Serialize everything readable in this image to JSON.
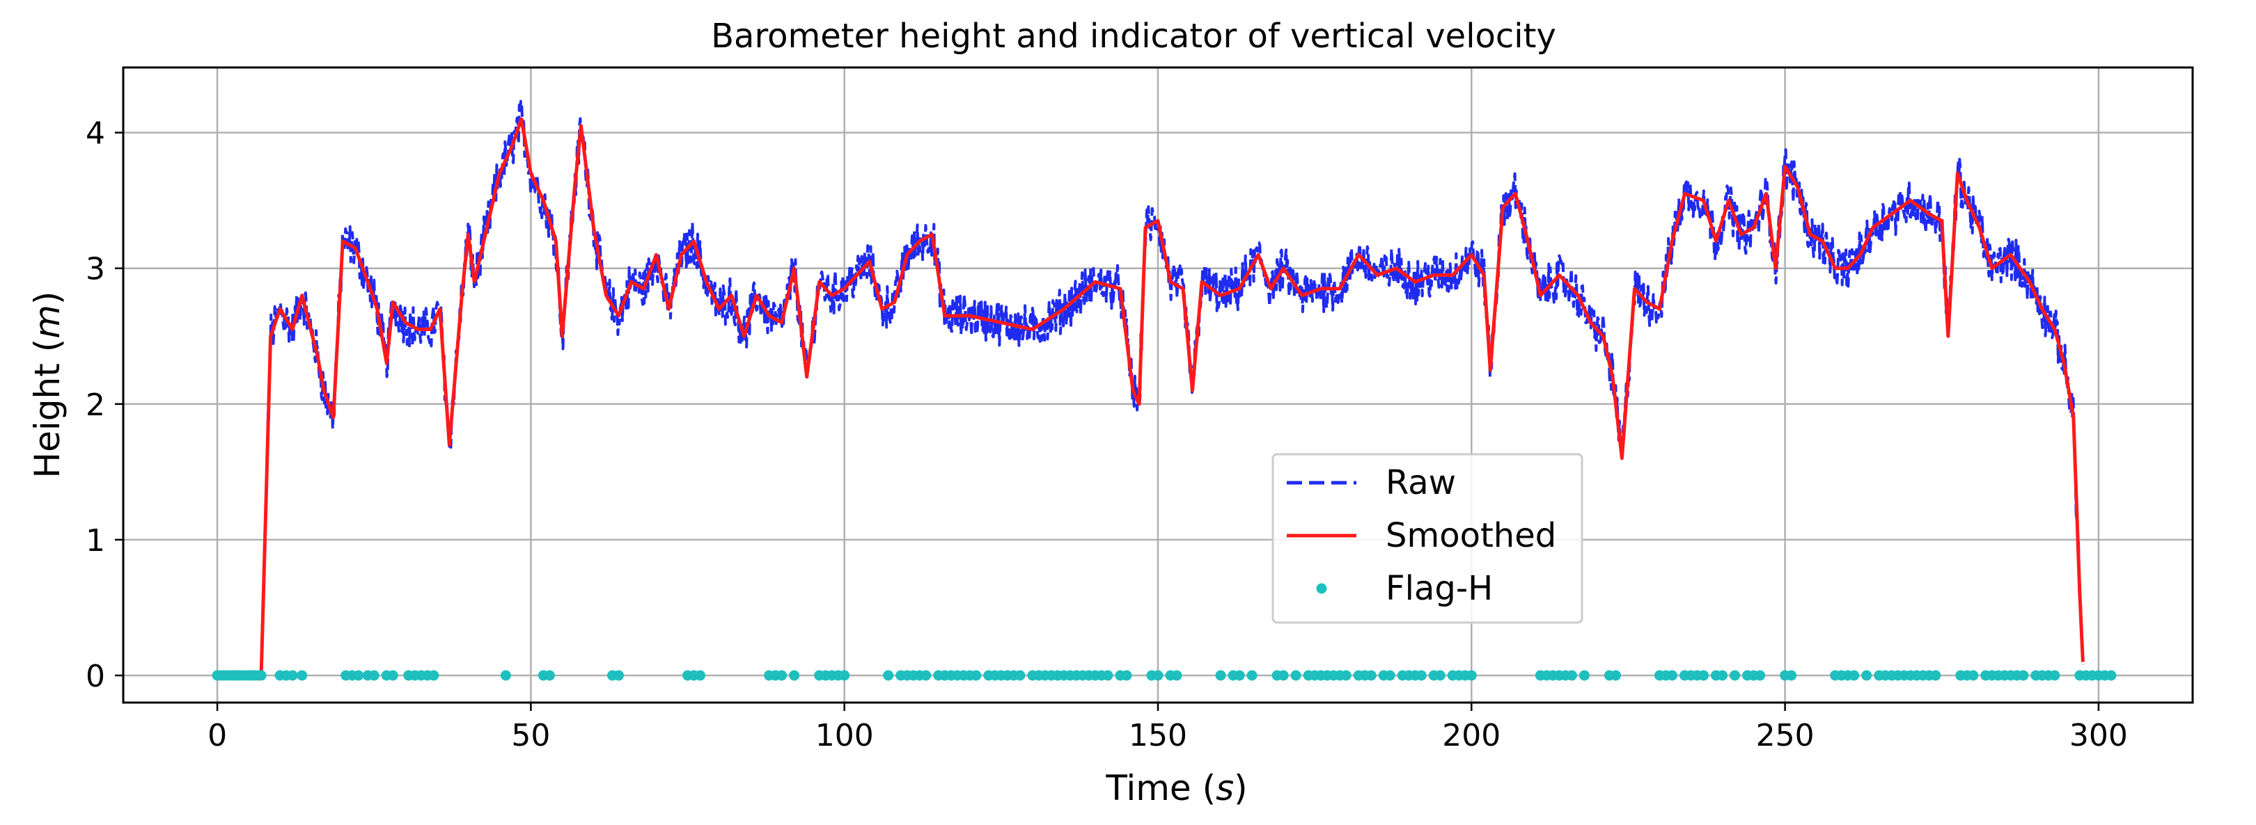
{
  "chart_data": {
    "type": "line",
    "title": "Barometer height and indicator of vertical velocity",
    "xlabel": "Time (s)",
    "xlabel_prefix": "Time (",
    "xlabel_unit": "s",
    "xlabel_suffix": ")",
    "ylabel": "Height (m)",
    "ylabel_prefix": "Height (",
    "ylabel_unit": "m",
    "ylabel_suffix": ")",
    "xlim": [
      -15,
      315
    ],
    "ylim": [
      -0.2,
      4.48
    ],
    "xticks": [
      0,
      50,
      100,
      150,
      200,
      250,
      300
    ],
    "yticks": [
      0,
      1,
      2,
      3,
      4
    ],
    "grid": true,
    "legend_position": "center-bottom",
    "colors": {
      "raw": "#1f2cf0",
      "smoothed": "#ff1a1a",
      "flag": "#1fbfbf"
    },
    "smoothed_anchors": [
      [
        0,
        0
      ],
      [
        7,
        0
      ],
      [
        8.5,
        2.5
      ],
      [
        10,
        2.7
      ],
      [
        12,
        2.55
      ],
      [
        13.5,
        2.8
      ],
      [
        16,
        2.35
      ],
      [
        17,
        2.1
      ],
      [
        18.5,
        1.9
      ],
      [
        20,
        3.2
      ],
      [
        22,
        3.15
      ],
      [
        24,
        2.9
      ],
      [
        25.5,
        2.7
      ],
      [
        27,
        2.3
      ],
      [
        28,
        2.75
      ],
      [
        30,
        2.6
      ],
      [
        32,
        2.55
      ],
      [
        34,
        2.55
      ],
      [
        35.5,
        2.7
      ],
      [
        37,
        1.7
      ],
      [
        39,
        2.8
      ],
      [
        40,
        3.25
      ],
      [
        41,
        2.9
      ],
      [
        43,
        3.3
      ],
      [
        45,
        3.7
      ],
      [
        47,
        3.9
      ],
      [
        48.5,
        4.1
      ],
      [
        50,
        3.7
      ],
      [
        52,
        3.5
      ],
      [
        54,
        3.2
      ],
      [
        55,
        2.5
      ],
      [
        57,
        3.6
      ],
      [
        58,
        4.05
      ],
      [
        60,
        3.3
      ],
      [
        62,
        2.8
      ],
      [
        64,
        2.65
      ],
      [
        66,
        2.9
      ],
      [
        68,
        2.85
      ],
      [
        70,
        3.1
      ],
      [
        72,
        2.7
      ],
      [
        74,
        3.1
      ],
      [
        76,
        3.2
      ],
      [
        78,
        2.9
      ],
      [
        80,
        2.7
      ],
      [
        82,
        2.8
      ],
      [
        84,
        2.5
      ],
      [
        86,
        2.8
      ],
      [
        88,
        2.65
      ],
      [
        90,
        2.6
      ],
      [
        92,
        3.0
      ],
      [
        94,
        2.2
      ],
      [
        96,
        2.9
      ],
      [
        98,
        2.8
      ],
      [
        100,
        2.85
      ],
      [
        102,
        2.95
      ],
      [
        104,
        3.05
      ],
      [
        106,
        2.7
      ],
      [
        108,
        2.75
      ],
      [
        110,
        3.1
      ],
      [
        112,
        3.2
      ],
      [
        114,
        3.25
      ],
      [
        116,
        2.65
      ],
      [
        120,
        2.65
      ],
      [
        125,
        2.6
      ],
      [
        130,
        2.55
      ],
      [
        135,
        2.7
      ],
      [
        140,
        2.9
      ],
      [
        144,
        2.85
      ],
      [
        146,
        2.1
      ],
      [
        147,
        2.0
      ],
      [
        148,
        3.3
      ],
      [
        150,
        3.35
      ],
      [
        152,
        2.9
      ],
      [
        154,
        2.85
      ],
      [
        155.5,
        2.1
      ],
      [
        157,
        2.9
      ],
      [
        160,
        2.8
      ],
      [
        163,
        2.85
      ],
      [
        166,
        3.1
      ],
      [
        168,
        2.85
      ],
      [
        170,
        3.0
      ],
      [
        173,
        2.8
      ],
      [
        176,
        2.85
      ],
      [
        179,
        2.85
      ],
      [
        182,
        3.1
      ],
      [
        185,
        2.95
      ],
      [
        188,
        3.0
      ],
      [
        191,
        2.9
      ],
      [
        194,
        2.95
      ],
      [
        197,
        2.95
      ],
      [
        200,
        3.1
      ],
      [
        202,
        2.95
      ],
      [
        203,
        2.25
      ],
      [
        205,
        3.45
      ],
      [
        207,
        3.55
      ],
      [
        209,
        3.2
      ],
      [
        211,
        2.8
      ],
      [
        214,
        2.95
      ],
      [
        217,
        2.8
      ],
      [
        219,
        2.6
      ],
      [
        221,
        2.5
      ],
      [
        222.5,
        2.2
      ],
      [
        224,
        1.6
      ],
      [
        226,
        2.85
      ],
      [
        228,
        2.75
      ],
      [
        230,
        2.7
      ],
      [
        232,
        3.2
      ],
      [
        234,
        3.55
      ],
      [
        237,
        3.5
      ],
      [
        239,
        3.2
      ],
      [
        241,
        3.5
      ],
      [
        243,
        3.25
      ],
      [
        245,
        3.3
      ],
      [
        247,
        3.55
      ],
      [
        248.5,
        3.0
      ],
      [
        250,
        3.75
      ],
      [
        252,
        3.6
      ],
      [
        254,
        3.25
      ],
      [
        256,
        3.2
      ],
      [
        258,
        3.0
      ],
      [
        260,
        3.0
      ],
      [
        262,
        3.1
      ],
      [
        264,
        3.3
      ],
      [
        267,
        3.4
      ],
      [
        270,
        3.5
      ],
      [
        273,
        3.4
      ],
      [
        275,
        3.35
      ],
      [
        276,
        2.5
      ],
      [
        277.5,
        3.7
      ],
      [
        279,
        3.5
      ],
      [
        281,
        3.3
      ],
      [
        283,
        3.0
      ],
      [
        286,
        3.1
      ],
      [
        289,
        2.9
      ],
      [
        291,
        2.7
      ],
      [
        293,
        2.55
      ],
      [
        294.5,
        2.3
      ],
      [
        296,
        1.9
      ],
      [
        297,
        0.6
      ],
      [
        297.6,
        0
      ],
      [
        300,
        0
      ]
    ],
    "raw_noise_amplitude": 0.14,
    "flag_points_x": [
      0,
      0.5,
      1,
      1.5,
      2,
      2.5,
      3,
      3.5,
      4,
      4.5,
      5,
      5.5,
      6,
      6.5,
      7,
      10,
      11,
      12,
      13.5,
      20.5,
      21.5,
      22.5,
      24,
      25,
      27,
      28,
      30.5,
      31.5,
      32.5,
      33.5,
      34.5,
      46,
      52,
      53,
      63,
      64,
      75,
      76,
      77,
      88,
      89,
      90,
      92,
      96,
      97,
      98,
      99,
      100,
      107,
      109,
      110,
      111,
      112,
      113,
      115,
      116,
      117,
      118,
      119,
      120,
      121,
      123,
      124,
      125,
      126,
      127,
      128,
      130,
      131,
      132,
      133,
      134,
      135,
      136,
      137,
      138,
      139,
      140,
      141,
      142,
      144,
      145,
      149,
      150,
      152,
      153,
      160,
      162,
      163,
      165,
      169,
      170,
      172,
      174,
      175,
      176,
      177,
      178,
      179,
      180,
      182,
      183,
      184,
      186,
      187,
      189,
      190,
      191,
      192,
      194,
      195,
      197,
      198,
      199,
      200,
      211,
      212,
      213,
      214,
      215,
      216,
      218,
      222,
      223,
      230,
      231,
      232,
      234,
      235,
      236,
      237,
      239,
      240,
      242,
      244,
      245,
      246,
      250,
      251,
      258,
      259,
      260,
      261,
      263,
      265,
      266,
      267,
      268,
      269,
      270,
      271,
      272,
      273,
      274,
      278,
      279,
      280,
      282,
      283,
      284,
      285,
      286,
      287,
      288,
      290,
      291,
      292,
      293,
      297,
      298,
      299,
      300,
      301,
      302
    ],
    "legend": {
      "raw": "Raw",
      "smoothed": "Smoothed",
      "flag": "Flag-H"
    }
  }
}
